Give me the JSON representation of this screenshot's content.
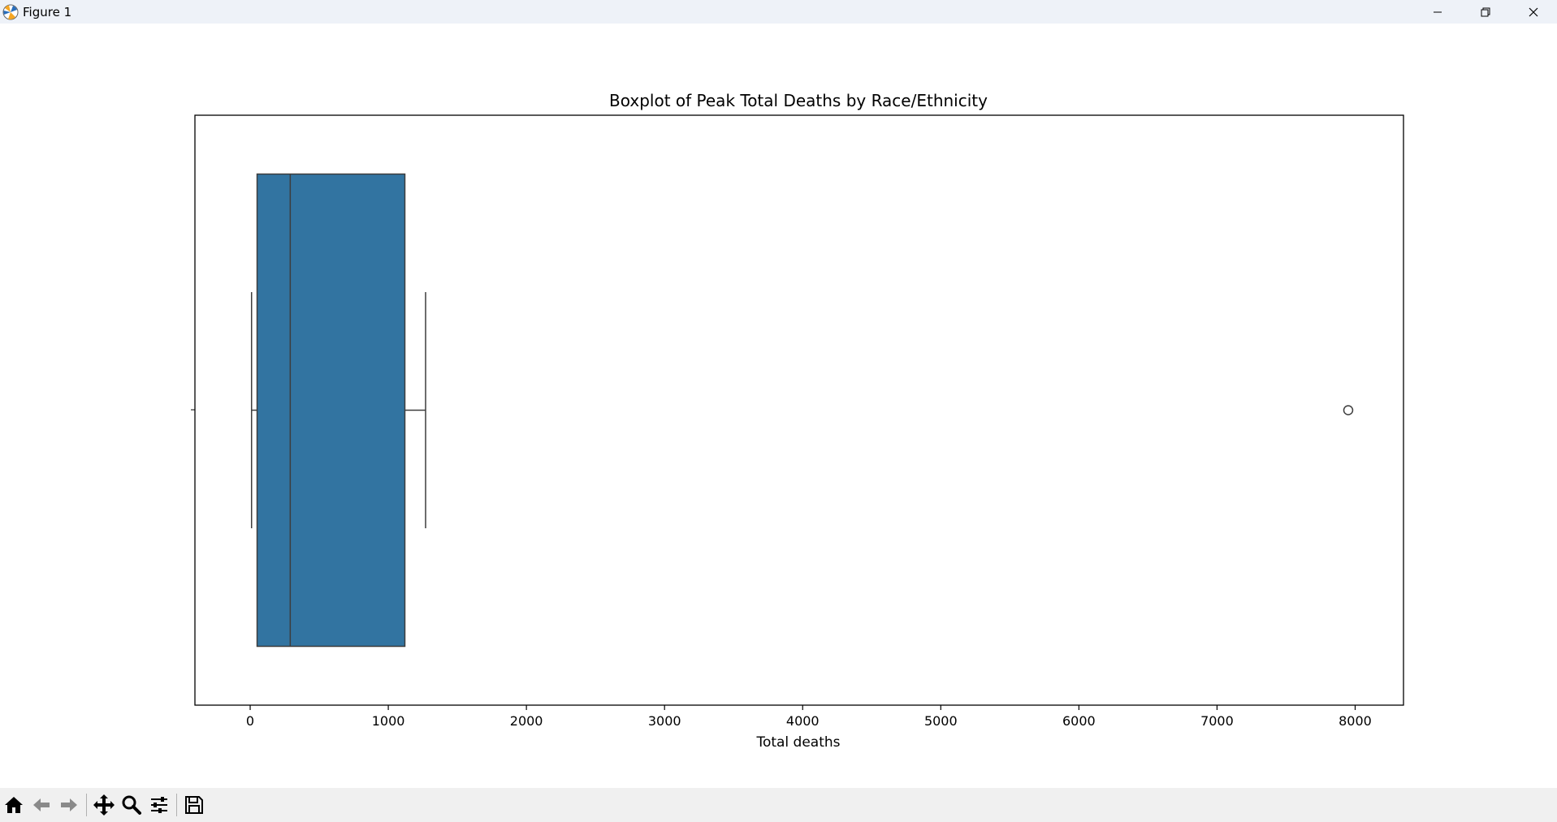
{
  "window": {
    "title": "Figure 1"
  },
  "chart_data": {
    "type": "boxplot",
    "orientation": "horizontal",
    "title": "Boxplot of Peak Total Deaths by Race/Ethnicity",
    "xlabel": "Total deaths",
    "ylabel": "",
    "xlim": [
      -400,
      8350
    ],
    "xticks": [
      0,
      1000,
      2000,
      3000,
      4000,
      5000,
      6000,
      7000,
      8000
    ],
    "xtick_labels": [
      "0",
      "1000",
      "2000",
      "3000",
      "4000",
      "5000",
      "6000",
      "7000",
      "8000"
    ],
    "box": {
      "whisker_low": 10,
      "q1": 50,
      "median": 290,
      "q3": 1120,
      "whisker_high": 1270,
      "outliers": [
        7950
      ]
    },
    "box_color": "#3274a1",
    "grid": false
  },
  "toolbar": {
    "buttons": [
      "home-icon",
      "back-icon",
      "forward-icon",
      "pan-icon",
      "zoom-icon",
      "configure-icon",
      "save-icon"
    ]
  }
}
